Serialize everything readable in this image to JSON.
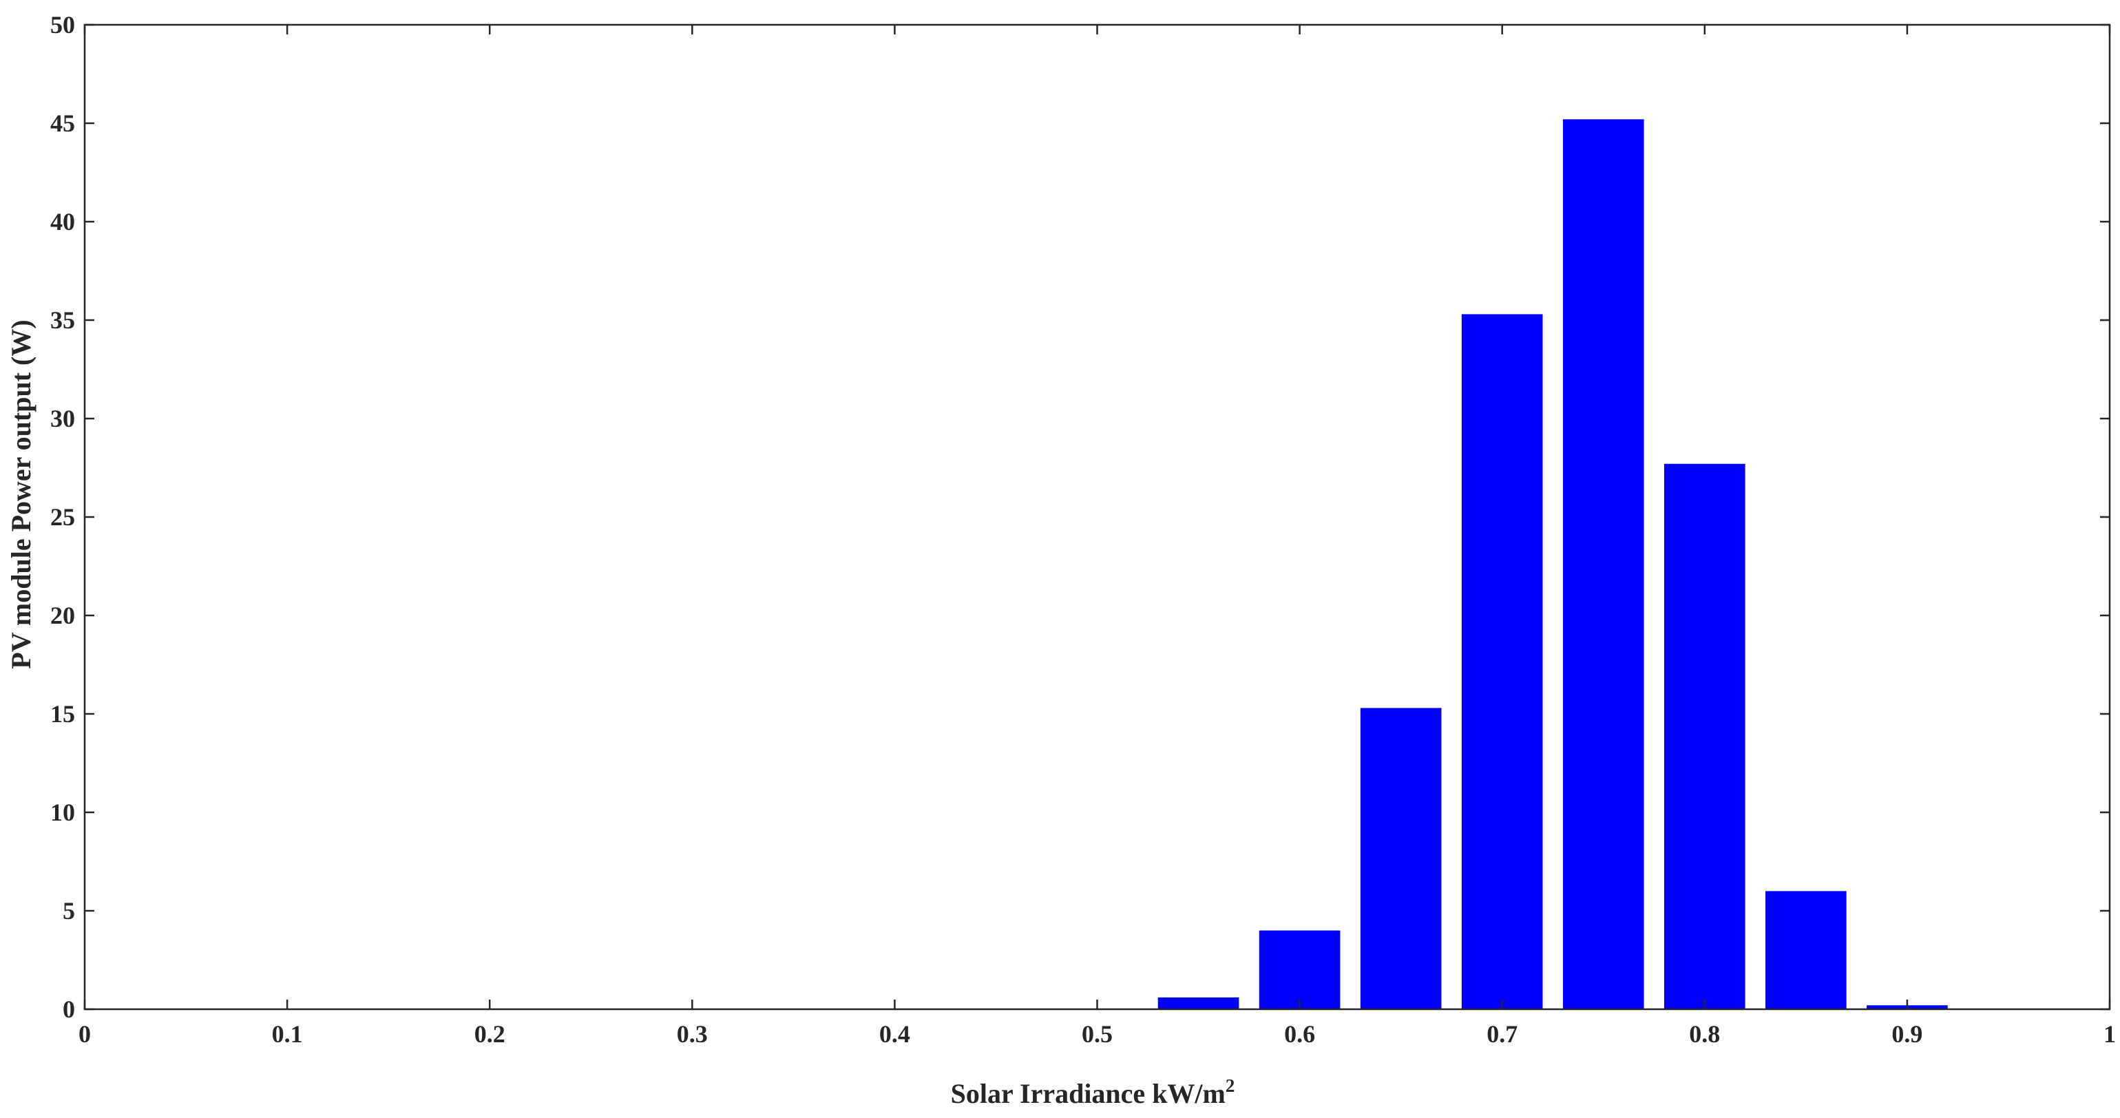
{
  "chart_data": {
    "type": "bar",
    "x": [
      0.55,
      0.6,
      0.65,
      0.7,
      0.75,
      0.8,
      0.85,
      0.9
    ],
    "values": [
      0.6,
      4.0,
      15.3,
      35.3,
      45.2,
      27.7,
      6.0,
      0.2
    ],
    "bar_width": 0.04,
    "color": "#0000ff",
    "xlabel": "Solar Irradiance kW/m",
    "xlabel_superscript": "2",
    "ylabel": "PV module Power output (W)",
    "xlim": [
      0,
      1
    ],
    "ylim": [
      0,
      50
    ],
    "xticks": [
      0,
      0.1,
      0.2,
      0.3,
      0.4,
      0.5,
      0.6,
      0.7,
      0.8,
      0.9,
      1
    ],
    "xtick_labels": [
      "0",
      "0.1",
      "0.2",
      "0.3",
      "0.4",
      "0.5",
      "0.6",
      "0.7",
      "0.8",
      "0.9",
      "1"
    ],
    "yticks": [
      0,
      5,
      10,
      15,
      20,
      25,
      30,
      35,
      40,
      45,
      50
    ],
    "ytick_labels": [
      "0",
      "5",
      "10",
      "15",
      "20",
      "25",
      "30",
      "35",
      "40",
      "45",
      "50"
    ],
    "grid": false,
    "box": true
  }
}
